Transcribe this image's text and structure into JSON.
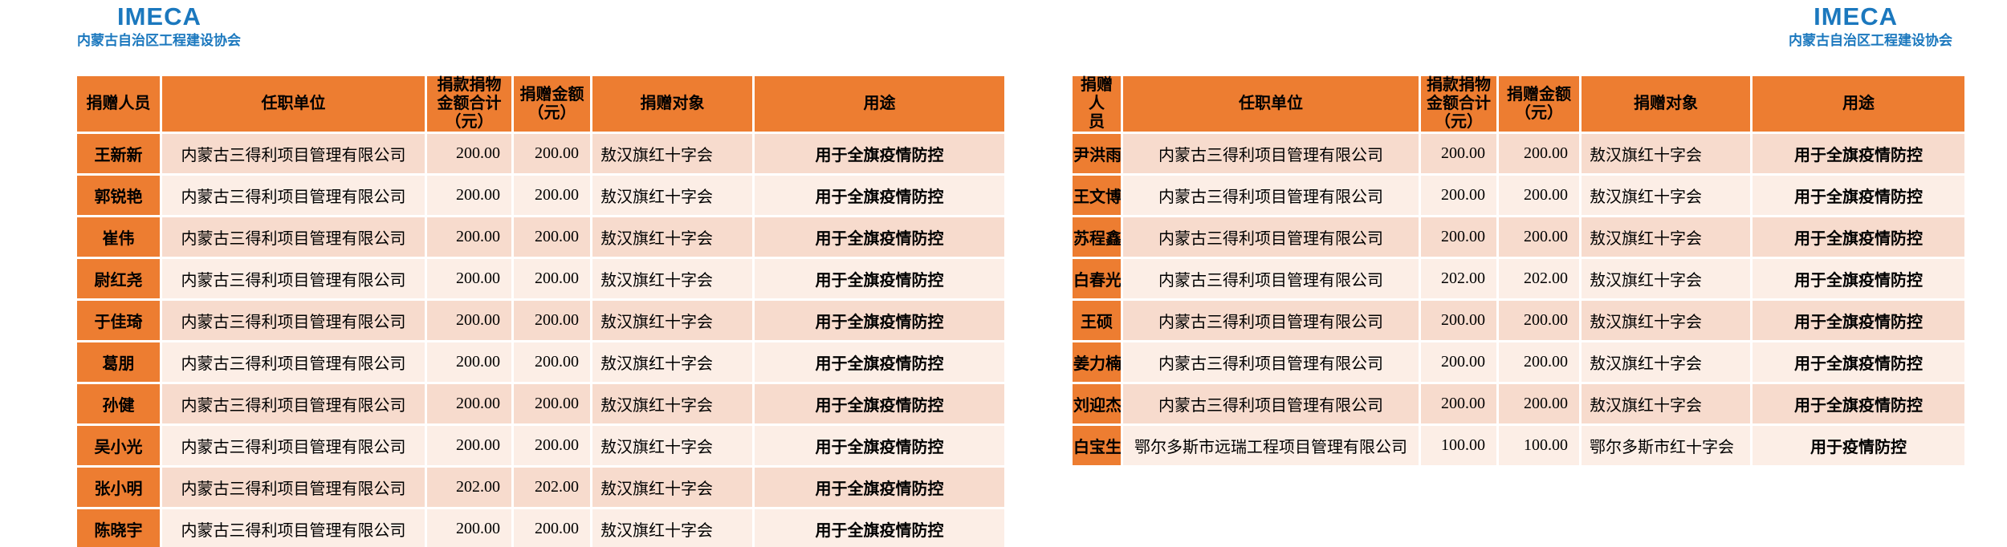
{
  "brand": {
    "logo_text": "IMECA",
    "org_name": "内蒙古自治区工程建设协会"
  },
  "colors": {
    "accent_orange": "#ED7D31",
    "band_dark": "#F7DBCD",
    "band_light": "#FCEEE6",
    "brand_blue": "#1B78BE"
  },
  "column_semantics": [
    "donor-name",
    "employer",
    "total-amount",
    "donation-amount",
    "recipient",
    "purpose"
  ],
  "tables": [
    {
      "name": "donation-table-left",
      "headers": [
        {
          "lines": [
            "捐赠人员"
          ]
        },
        {
          "lines": [
            "任职单位"
          ]
        },
        {
          "lines": [
            "捐款捐物",
            "金额合计",
            "（元）"
          ]
        },
        {
          "lines": [
            "捐赠金额",
            "（元）"
          ]
        },
        {
          "lines": [
            "捐赠对象"
          ]
        },
        {
          "lines": [
            "用途"
          ]
        }
      ],
      "rows": [
        [
          "王新新",
          "内蒙古三得利项目管理有限公司",
          "200.00",
          "200.00",
          "敖汉旗红十字会",
          "用于全旗疫情防控"
        ],
        [
          "郭锐艳",
          "内蒙古三得利项目管理有限公司",
          "200.00",
          "200.00",
          "敖汉旗红十字会",
          "用于全旗疫情防控"
        ],
        [
          "崔伟",
          "内蒙古三得利项目管理有限公司",
          "200.00",
          "200.00",
          "敖汉旗红十字会",
          "用于全旗疫情防控"
        ],
        [
          "尉红尧",
          "内蒙古三得利项目管理有限公司",
          "200.00",
          "200.00",
          "敖汉旗红十字会",
          "用于全旗疫情防控"
        ],
        [
          "于佳琦",
          "内蒙古三得利项目管理有限公司",
          "200.00",
          "200.00",
          "敖汉旗红十字会",
          "用于全旗疫情防控"
        ],
        [
          "葛朋",
          "内蒙古三得利项目管理有限公司",
          "200.00",
          "200.00",
          "敖汉旗红十字会",
          "用于全旗疫情防控"
        ],
        [
          "孙健",
          "内蒙古三得利项目管理有限公司",
          "200.00",
          "200.00",
          "敖汉旗红十字会",
          "用于全旗疫情防控"
        ],
        [
          "吴小光",
          "内蒙古三得利项目管理有限公司",
          "200.00",
          "200.00",
          "敖汉旗红十字会",
          "用于全旗疫情防控"
        ],
        [
          "张小明",
          "内蒙古三得利项目管理有限公司",
          "202.00",
          "202.00",
          "敖汉旗红十字会",
          "用于全旗疫情防控"
        ],
        [
          "陈晓宇",
          "内蒙古三得利项目管理有限公司",
          "200.00",
          "200.00",
          "敖汉旗红十字会",
          "用于全旗疫情防控"
        ]
      ]
    },
    {
      "name": "donation-table-right",
      "headers": [
        {
          "lines": [
            "捐赠人",
            "员"
          ]
        },
        {
          "lines": [
            "任职单位"
          ]
        },
        {
          "lines": [
            "捐款捐物",
            "金额合计",
            "（元）"
          ]
        },
        {
          "lines": [
            "捐赠金额",
            "（元）"
          ]
        },
        {
          "lines": [
            "捐赠对象"
          ]
        },
        {
          "lines": [
            "用途"
          ]
        }
      ],
      "rows": [
        [
          "尹洪雨",
          "内蒙古三得利项目管理有限公司",
          "200.00",
          "200.00",
          "敖汉旗红十字会",
          "用于全旗疫情防控"
        ],
        [
          "王文博",
          "内蒙古三得利项目管理有限公司",
          "200.00",
          "200.00",
          "敖汉旗红十字会",
          "用于全旗疫情防控"
        ],
        [
          "苏程鑫",
          "内蒙古三得利项目管理有限公司",
          "200.00",
          "200.00",
          "敖汉旗红十字会",
          "用于全旗疫情防控"
        ],
        [
          "白春光",
          "内蒙古三得利项目管理有限公司",
          "202.00",
          "202.00",
          "敖汉旗红十字会",
          "用于全旗疫情防控"
        ],
        [
          "王硕",
          "内蒙古三得利项目管理有限公司",
          "200.00",
          "200.00",
          "敖汉旗红十字会",
          "用于全旗疫情防控"
        ],
        [
          "姜力楠",
          "内蒙古三得利项目管理有限公司",
          "200.00",
          "200.00",
          "敖汉旗红十字会",
          "用于全旗疫情防控"
        ],
        [
          "刘迎杰",
          "内蒙古三得利项目管理有限公司",
          "200.00",
          "200.00",
          "敖汉旗红十字会",
          "用于全旗疫情防控"
        ],
        [
          "白宝生",
          "鄂尔多斯市远瑞工程项目管理有限公司",
          "100.00",
          "100.00",
          "鄂尔多斯市红十字会",
          "用于疫情防控"
        ]
      ]
    }
  ]
}
